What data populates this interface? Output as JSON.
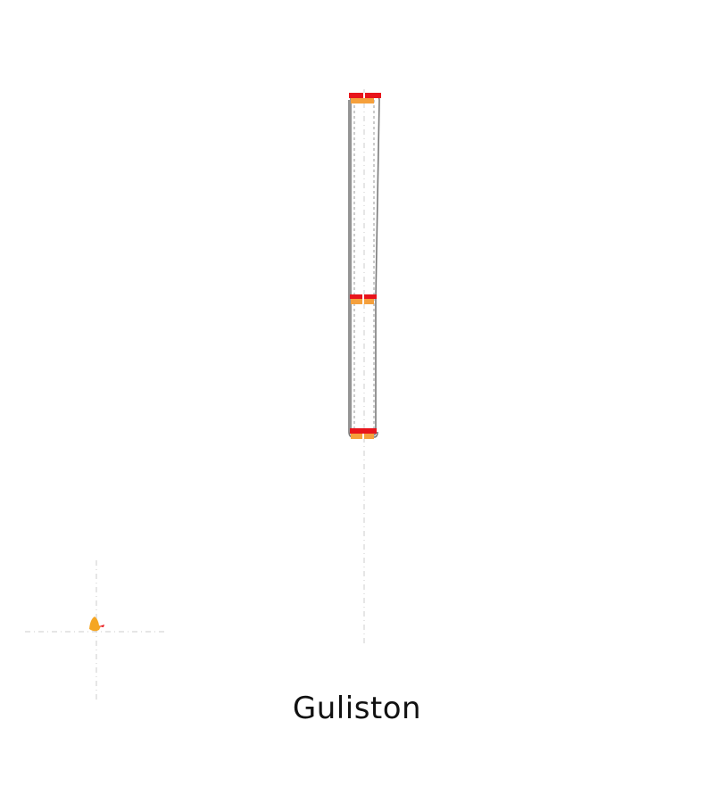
{
  "map": {
    "city_name": "Guliston",
    "colors": {
      "background": "#ffffff",
      "guide_line": "#d6d6d6",
      "track": "#7a7a7a",
      "platform_primary": "#e8141b",
      "platform_secondary": "#f5a03c",
      "marker": "#f5a623"
    },
    "layers": [
      "guide-lines",
      "rail-track",
      "station-platforms",
      "location-marker"
    ]
  }
}
